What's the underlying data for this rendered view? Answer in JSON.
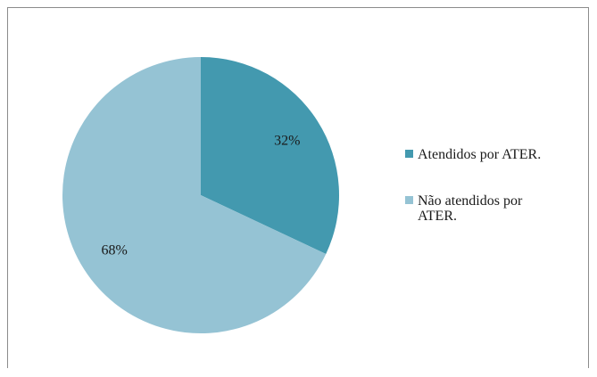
{
  "chart_data": {
    "type": "pie",
    "title": "",
    "series": [
      {
        "name": "",
        "labels": [
          "Atendidos por ATER.",
          "Não atendidos por ATER."
        ],
        "values": [
          32,
          68
        ],
        "display_values": [
          "32%",
          "68%"
        ]
      }
    ],
    "legend_position": "right",
    "legend_entries": [
      {
        "label_lines": [
          "Atendidos por ATER."
        ],
        "color": "#4399AF"
      },
      {
        "label_lines": [
          "Não atendidos por",
          "ATER."
        ],
        "color": "#95C3D4"
      }
    ],
    "colors": [
      "#4399AF",
      "#95C3D4"
    ]
  }
}
